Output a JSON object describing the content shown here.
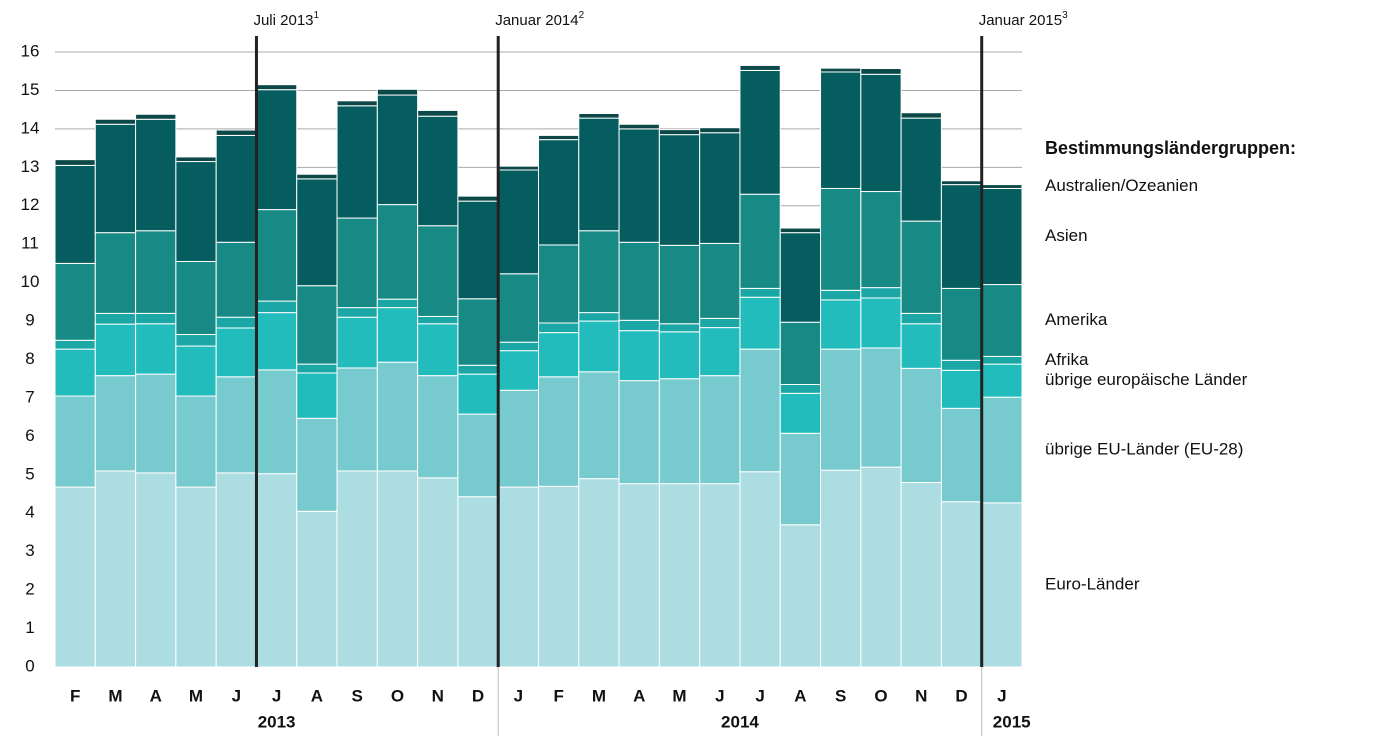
{
  "chart_data": {
    "type": "stacked-bar",
    "categories": [
      "F",
      "M",
      "A",
      "M",
      "J",
      "J",
      "A",
      "S",
      "O",
      "N",
      "D",
      "J",
      "F",
      "M",
      "A",
      "M",
      "J",
      "J",
      "A",
      "S",
      "O",
      "N",
      "D",
      "J"
    ],
    "year_groups": [
      {
        "label": "2013",
        "count": 11
      },
      {
        "label": "2014",
        "count": 12
      },
      {
        "label": "2015",
        "count": 1
      }
    ],
    "annotations": [
      {
        "text": "Juli 2013",
        "sup": "1",
        "before": 5
      },
      {
        "text": "Januar 2014",
        "sup": "2",
        "before": 11
      },
      {
        "text": "Januar 2015",
        "sup": "3",
        "before": 23
      }
    ],
    "legend_title": "Bestimmungsländergruppen:",
    "ylim": [
      0,
      16
    ],
    "yticks": [
      0,
      1,
      2,
      3,
      4,
      5,
      6,
      7,
      8,
      9,
      10,
      11,
      12,
      13,
      14,
      15,
      16
    ],
    "grid": true,
    "series": [
      {
        "name": "Euro-Länder",
        "color": "#acdde2",
        "values": [
          4.68,
          5.1,
          5.05,
          4.68,
          5.05,
          5.03,
          4.05,
          5.1,
          5.1,
          4.92,
          4.43,
          4.68,
          4.7,
          4.9,
          4.77,
          4.77,
          4.77,
          5.08,
          3.7,
          5.12,
          5.2,
          4.8,
          4.3,
          4.27
        ]
      },
      {
        "name": "übrige EU-Länder (EU-28)",
        "color": "#77cacd",
        "values": [
          2.37,
          2.48,
          2.57,
          2.37,
          2.5,
          2.7,
          2.42,
          2.68,
          2.83,
          2.66,
          2.15,
          2.52,
          2.85,
          2.78,
          2.68,
          2.73,
          2.81,
          3.19,
          2.38,
          3.15,
          3.1,
          2.97,
          2.43,
          2.75
        ]
      },
      {
        "name": "übrige europäische Länder",
        "color": "#22bcbd",
        "values": [
          1.22,
          1.34,
          1.31,
          1.3,
          1.27,
          1.49,
          1.18,
          1.32,
          1.42,
          1.35,
          1.04,
          1.03,
          1.15,
          1.32,
          1.3,
          1.22,
          1.25,
          1.35,
          1.04,
          1.28,
          1.3,
          1.16,
          0.99,
          0.86
        ]
      },
      {
        "name": "Afrika",
        "color": "#1aa7a5",
        "values": [
          0.23,
          0.28,
          0.27,
          0.3,
          0.28,
          0.3,
          0.23,
          0.25,
          0.22,
          0.19,
          0.23,
          0.22,
          0.25,
          0.22,
          0.27,
          0.21,
          0.24,
          0.23,
          0.23,
          0.25,
          0.27,
          0.27,
          0.26,
          0.2
        ]
      },
      {
        "name": "Amerika",
        "color": "#178a85",
        "values": [
          2.0,
          2.1,
          2.15,
          1.9,
          1.95,
          2.38,
          2.04,
          2.33,
          2.46,
          2.36,
          1.73,
          1.78,
          2.03,
          2.13,
          2.03,
          2.04,
          1.95,
          2.45,
          1.62,
          2.65,
          2.5,
          2.4,
          1.87,
          1.87
        ]
      },
      {
        "name": "Asien",
        "color": "#055d5f",
        "values": [
          2.55,
          2.82,
          2.9,
          2.6,
          2.78,
          3.12,
          2.78,
          2.92,
          2.85,
          2.85,
          2.54,
          2.7,
          2.74,
          2.93,
          2.95,
          2.88,
          2.88,
          3.22,
          2.33,
          3.03,
          3.05,
          2.68,
          2.7,
          2.5
        ]
      },
      {
        "name": "Australien/Ozeanien",
        "color": "#0b4847",
        "values": [
          0.15,
          0.13,
          0.13,
          0.12,
          0.14,
          0.13,
          0.12,
          0.13,
          0.15,
          0.15,
          0.13,
          0.1,
          0.11,
          0.12,
          0.12,
          0.13,
          0.13,
          0.13,
          0.12,
          0.1,
          0.15,
          0.14,
          0.1,
          0.1
        ]
      }
    ]
  }
}
